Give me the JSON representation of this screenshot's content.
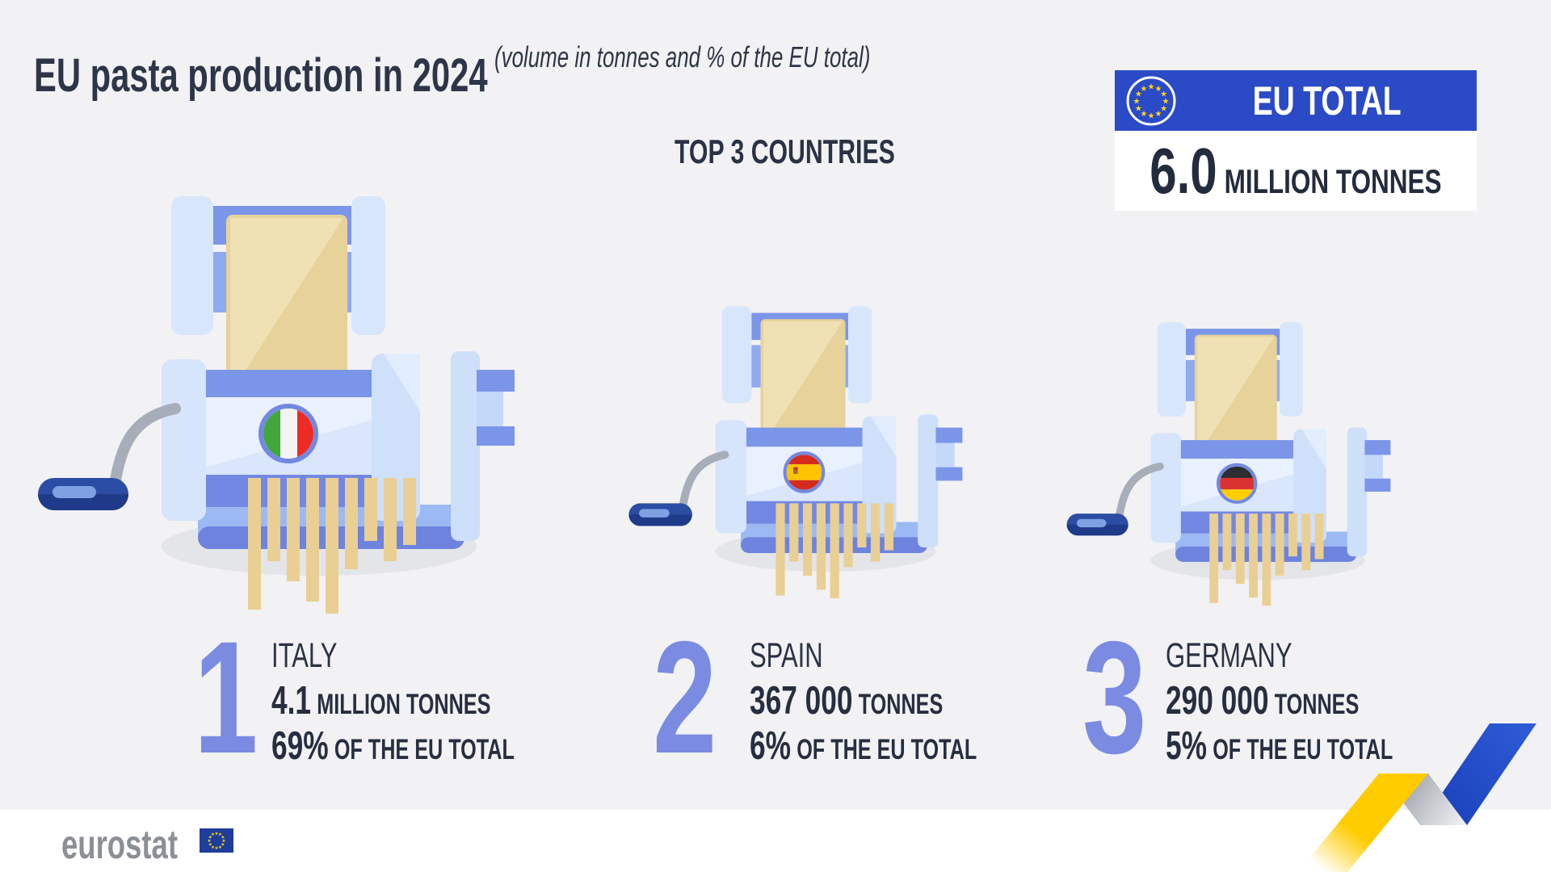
{
  "title": {
    "main": "EU pasta production in 2024",
    "subtitle": "(volume in tonnes and % of the EU total)"
  },
  "section_heading": "TOP 3 COUNTRIES",
  "eu_total": {
    "label": "EU TOTAL",
    "value": "6.0",
    "unit": "MILLION TONNES"
  },
  "countries": [
    {
      "rank": "1",
      "name": "ITALY",
      "value": "4.1",
      "value_unit": "MILLION TONNES",
      "share": "69%",
      "share_label": "OF THE EU TOTAL"
    },
    {
      "rank": "2",
      "name": "SPAIN",
      "value": "367 000",
      "value_unit": "TONNES",
      "share": "6%",
      "share_label": "OF THE EU TOTAL"
    },
    {
      "rank": "3",
      "name": "GERMANY",
      "value": "290 000",
      "value_unit": "TONNES",
      "share": "5%",
      "share_label": "OF THE EU TOTAL"
    }
  ],
  "footer": {
    "logo_text": "eurostat"
  },
  "colors": {
    "background": "#f2f2f4",
    "navy_text": "#2a3245",
    "eu_blue": "#2a4ac6",
    "accent_periwinkle": "#7b8be2",
    "machine_blue_light": "#d8e6fc",
    "machine_periwinkle": "#7b95e8",
    "pasta_gold": "#e7d29a",
    "ribbon_yellow": "#ffcc00",
    "ribbon_blue": "#2150cc",
    "star_yellow": "#ffd617",
    "logo_gray": "#8b8f96",
    "eu_flag_blue": "#1f3d99",
    "flag_italy": {
      "green": "#41a63c",
      "white": "#f4f4f4",
      "red": "#ee2a24"
    },
    "flag_spain": {
      "red": "#d52b1e",
      "yellow": "#ffc400"
    },
    "flag_germany": {
      "black": "#2d2d31",
      "red": "#da3232",
      "gold": "#ffce00"
    }
  },
  "chart_data": {
    "type": "bar",
    "title": "EU pasta production in 2024",
    "subtitle": "(volume in tonnes and % of the EU total)",
    "eu_total": {
      "tonnes": 6000000,
      "label": "6.0 MILLION TONNES"
    },
    "categories": [
      "Italy",
      "Spain",
      "Germany"
    ],
    "series": [
      {
        "name": "Production (tonnes)",
        "values": [
          4100000,
          367000,
          290000
        ]
      },
      {
        "name": "Share of EU total (%)",
        "values": [
          69,
          6,
          5
        ]
      }
    ],
    "ranks": [
      1,
      2,
      3
    ]
  }
}
